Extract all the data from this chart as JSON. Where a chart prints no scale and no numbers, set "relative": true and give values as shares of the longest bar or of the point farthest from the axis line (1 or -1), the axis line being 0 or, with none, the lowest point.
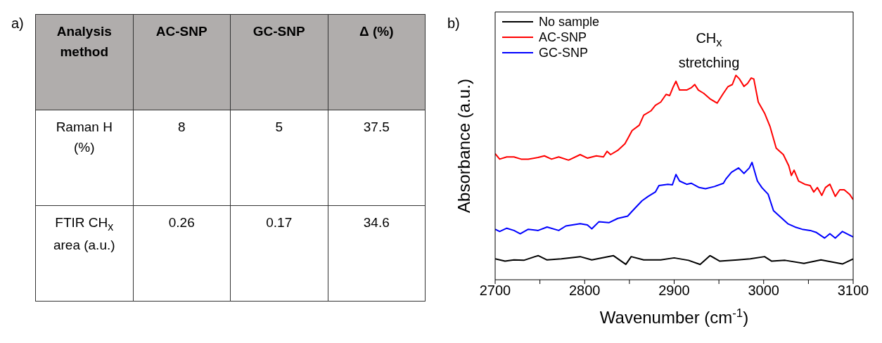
{
  "chart_data": [
    {
      "type": "other",
      "title": "a)",
      "annotations": [
        "Analysis method",
        "AC-SNP",
        "GC-SNP",
        "Δ (%)",
        "Raman H (%)",
        "8",
        "5",
        "37.5",
        "FTIR CH$_{x}$ area (a.u.)",
        "0.26",
        "0.17",
        "34.6"
      ]
    },
    {
      "type": "line",
      "title": "b)",
      "relative": true,
      "xlabel": "Wavenumber (cm$^{-1}$)",
      "ylabel": "Absorbance (a.u.)",
      "xlim": [
        2700,
        3100
      ],
      "xticks": [
        2700,
        {
          "value": 2750,
          "label": null
        },
        2800,
        {
          "value": 2850,
          "label": null
        },
        2900,
        {
          "value": 2950,
          "label": null
        },
        3000,
        {
          "value": 3050,
          "label": null
        },
        3100
      ],
      "legend": "top left",
      "annotations": [
        "CH$_{x}$ stretching"
      ],
      "series": [
        {
          "name": "No sample",
          "color": "#000000",
          "x": [
            2700,
            2711,
            2721,
            2732,
            2748,
            2758,
            2774,
            2795,
            2808,
            2832,
            2846,
            2852,
            2866,
            2885,
            2900,
            2916,
            2929,
            2940,
            2951,
            2971,
            2985,
            3001,
            3009,
            3024,
            3045,
            3064,
            3088,
            3100
          ],
          "values": [
            0.102,
            0.091,
            0.097,
            0.095,
            0.118,
            0.097,
            0.102,
            0.113,
            0.097,
            0.118,
            0.075,
            0.113,
            0.097,
            0.097,
            0.107,
            0.095,
            0.075,
            0.118,
            0.091,
            0.097,
            0.102,
            0.113,
            0.091,
            0.095,
            0.08,
            0.097,
            0.077,
            0.102
          ]
        },
        {
          "name": "AC-SNP",
          "color": "#ff0000",
          "x": [
            2700,
            2705,
            2713,
            2721,
            2729,
            2737,
            2748,
            2755,
            2763,
            2771,
            2782,
            2795,
            2803,
            2813,
            2821,
            2825,
            2829,
            2837,
            2845,
            2849,
            2853,
            2861,
            2866,
            2874,
            2879,
            2885,
            2891,
            2895,
            2899,
            2902,
            2906,
            2914,
            2919,
            2923,
            2927,
            2933,
            2940,
            2948,
            2955,
            2960,
            2965,
            2969,
            2973,
            2978,
            2982,
            2986,
            2989,
            2994,
            3001,
            3007,
            3014,
            3022,
            3028,
            3031,
            3034,
            3039,
            3046,
            3052,
            3056,
            3060,
            3065,
            3069,
            3074,
            3080,
            3085,
            3090,
            3096,
            3100
          ],
          "values": [
            0.617,
            0.59,
            0.601,
            0.601,
            0.59,
            0.59,
            0.598,
            0.606,
            0.59,
            0.601,
            0.585,
            0.612,
            0.595,
            0.606,
            0.601,
            0.628,
            0.612,
            0.633,
            0.665,
            0.697,
            0.73,
            0.756,
            0.805,
            0.826,
            0.853,
            0.869,
            0.907,
            0.901,
            0.944,
            0.971,
            0.928,
            0.928,
            0.939,
            0.955,
            0.928,
            0.912,
            0.885,
            0.864,
            0.912,
            0.944,
            0.955,
            1,
            0.982,
            0.946,
            0.96,
            0.987,
            0.982,
            0.869,
            0.815,
            0.751,
            0.644,
            0.612,
            0.558,
            0.51,
            0.536,
            0.483,
            0.467,
            0.461,
            0.429,
            0.451,
            0.413,
            0.451,
            0.467,
            0.408,
            0.44,
            0.44,
            0.418,
            0.392
          ]
        },
        {
          "name": "GC-SNP",
          "color": "#0000ff",
          "x": [
            2700,
            2705,
            2713,
            2721,
            2728,
            2737,
            2748,
            2758,
            2771,
            2779,
            2795,
            2803,
            2808,
            2816,
            2827,
            2837,
            2848,
            2856,
            2864,
            2871,
            2879,
            2883,
            2893,
            2898,
            2902,
            2906,
            2914,
            2919,
            2928,
            2935,
            2945,
            2955,
            2958,
            2964,
            2972,
            2978,
            2984,
            2987,
            2993,
            2998,
            3005,
            3011,
            3019,
            3027,
            3035,
            3043,
            3052,
            3059,
            3068,
            3074,
            3080,
            3088,
            3093,
            3100
          ],
          "values": [
            0.247,
            0.236,
            0.252,
            0.241,
            0.225,
            0.247,
            0.241,
            0.258,
            0.241,
            0.263,
            0.274,
            0.268,
            0.249,
            0.284,
            0.279,
            0.3,
            0.311,
            0.349,
            0.386,
            0.408,
            0.429,
            0.461,
            0.467,
            0.464,
            0.515,
            0.483,
            0.467,
            0.472,
            0.451,
            0.445,
            0.456,
            0.472,
            0.494,
            0.526,
            0.547,
            0.52,
            0.547,
            0.574,
            0.483,
            0.451,
            0.418,
            0.338,
            0.306,
            0.274,
            0.258,
            0.247,
            0.241,
            0.231,
            0.204,
            0.225,
            0.204,
            0.236,
            0.225,
            0.209
          ]
        }
      ]
    }
  ]
}
